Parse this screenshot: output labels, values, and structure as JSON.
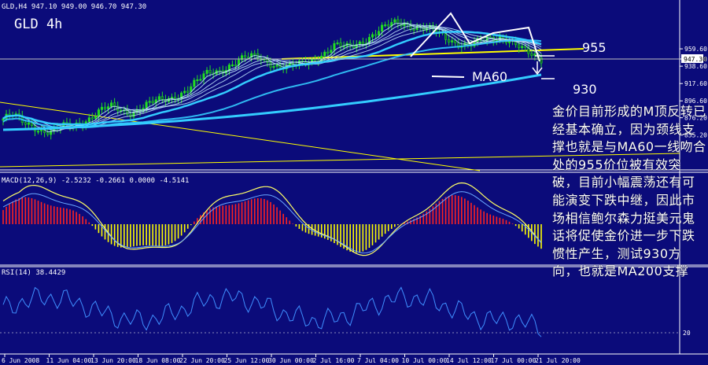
{
  "header": {
    "info": "GLD,H4  947.10  949.00  946.70  947.30",
    "title": "GLD 4h"
  },
  "macd_label": "MACD(12,26,9) -2.5232 -0.2661 0.0000 -4.5141",
  "rsi_label": "RSI(14) 38.4429",
  "annotations": {
    "level_955": "955",
    "level_930": "930",
    "ma60": "MA60"
  },
  "note": "金价目前形成的M顶反转已经基本确立，因为颈线支撑也就是与MA60一线吻合处的955价位被有效突破，目前小幅震荡还有可能演变下跌中继，因此市场相信鲍尔森力挺美元鬼话将促使金价进一步下跌惯性产生，测试930方向，也就是MA200支撑",
  "colors": {
    "background": "#0b0b7a",
    "candle": "#22dd22",
    "ma_main": "#33ccff",
    "ma_thin": "#bfe8ff",
    "trend": "#ffff00",
    "macd_pos": "#ff2222",
    "macd_neg": "#ffff00",
    "rsi": "#3f8fff"
  },
  "chart_data": [
    {
      "type": "candlestick",
      "title": "GLD 4h",
      "price_axis_ticks": [
        959.6,
        947.3,
        938.6,
        917.6,
        896.6,
        876.2,
        855.2
      ],
      "current_price": 947.3,
      "levels": [
        955,
        930
      ],
      "x_labels": [
        "6 Jun 2008",
        "11 Jun 04:00",
        "13 Jun 20:00",
        "18 Jun 08:00",
        "22 Jun 20:00",
        "25 Jun 12:00",
        "30 Jun 00:00",
        "2 Jul 16:00",
        "7 Jul 04:00",
        "10 Jul 00:00",
        "14 Jul 12:00",
        "17 Jul 00:00",
        "21 Jul 20:00"
      ],
      "close_path": [
        875,
        878,
        870,
        868,
        862,
        858,
        864,
        866,
        872,
        878,
        884,
        888,
        886,
        884,
        888,
        892,
        896,
        900,
        906,
        912,
        920,
        930,
        934,
        940,
        944,
        948,
        950,
        946,
        940,
        936,
        938,
        944,
        950,
        956,
        962,
        960,
        966,
        972,
        978,
        984,
        990,
        992,
        988,
        984,
        980,
        974,
        970,
        966,
        964,
        968,
        972,
        976,
        970,
        958,
        950,
        947
      ]
    },
    {
      "type": "bar",
      "title": "MACD(12,26,9)",
      "values": [
        -2.5232,
        -0.2661,
        0,
        -4.5141
      ]
    },
    {
      "type": "line",
      "title": "RSI(14)",
      "ylim": [
        0,
        100
      ],
      "y_ticks": [
        20
      ],
      "last": 38.4429
    }
  ]
}
